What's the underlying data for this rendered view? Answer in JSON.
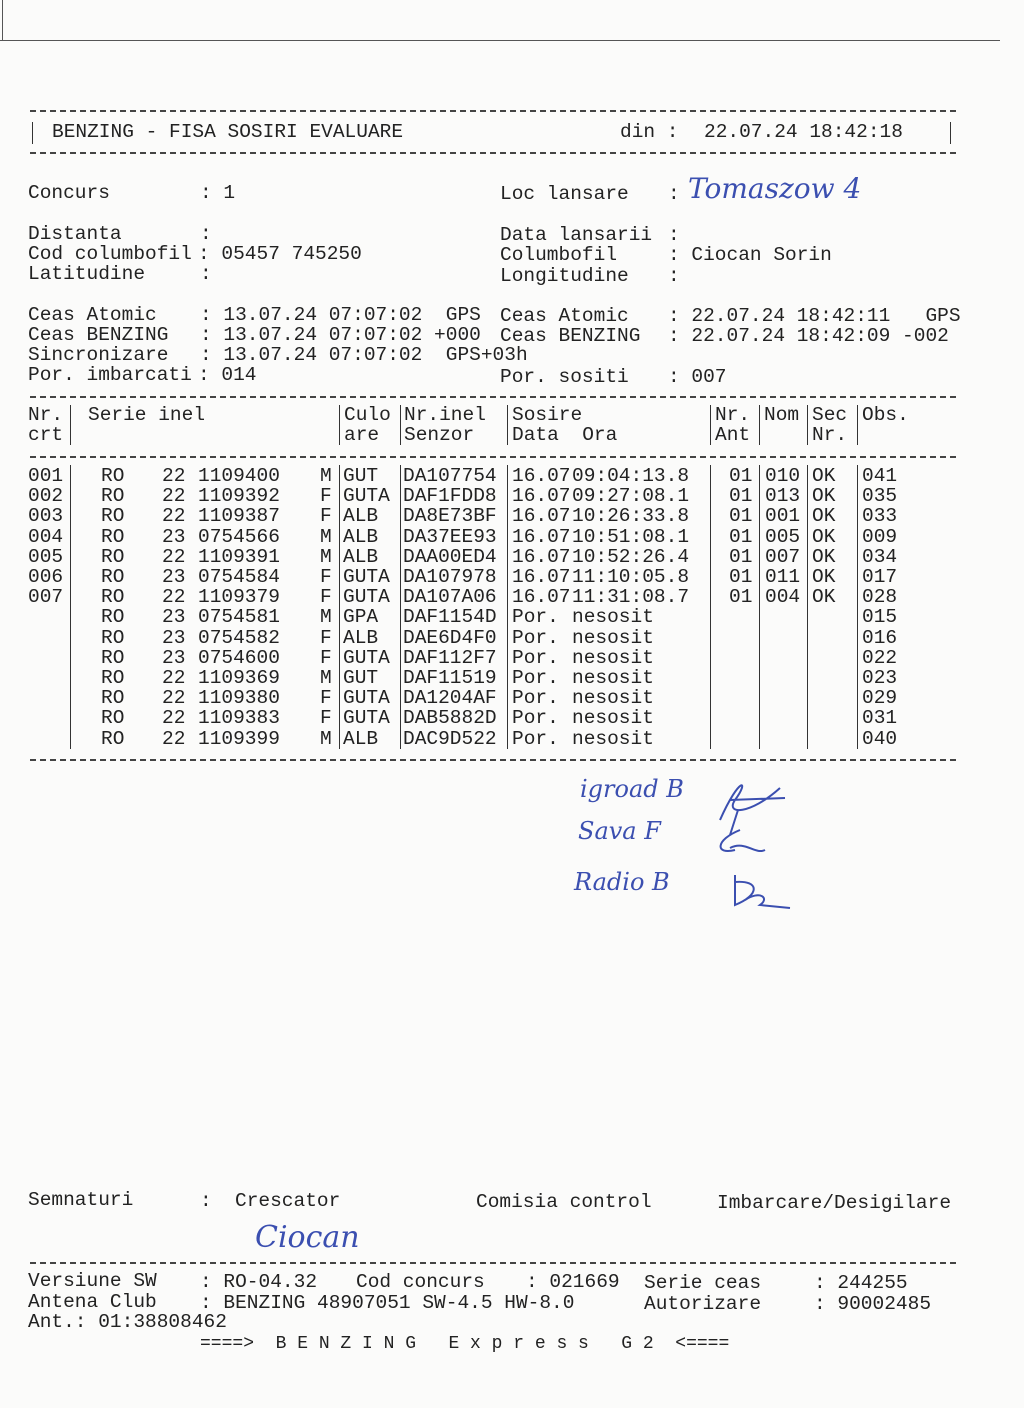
{
  "header": {
    "title": "BENZING - FISA SOSIRI EVALUARE",
    "din_label": "din :",
    "din_value": "22.07.24 18:42:18"
  },
  "info": {
    "concurs_label": "Concurs",
    "concurs_value": "1",
    "loc_lansare_label": "Loc lansare",
    "loc_lansare_value": "Tomaszow 4",
    "distanta_label": "Distanta",
    "distanta_value": "",
    "data_lansarii_label": "Data lansarii",
    "data_lansarii_value": "",
    "cod_columbofil_label": "Cod columbofil",
    "cod_columbofil_value": "05457 745250",
    "columbofil_label": "Columbofil",
    "columbofil_value": "Ciocan Sorin",
    "latitudine_label": "Latitudine",
    "latitudine_value": "",
    "longitudine_label": "Longitudine",
    "longitudine_value": ""
  },
  "clocks": {
    "ceas_atomic_label": "Ceas Atomic",
    "ceas_atomic_start": "13.07.24 07:07:02",
    "ceas_atomic_start_suffix": "GPS",
    "ceas_atomic_end": "22.07.24 18:42:11",
    "ceas_atomic_end_suffix": "GPS",
    "ceas_benzing_label": "Ceas BENZING",
    "ceas_benzing_start": "13.07.24 07:07:02",
    "ceas_benzing_start_suffix": "+000",
    "ceas_benzing_end": "22.07.24 18:42:09",
    "ceas_benzing_end_suffix": "-002",
    "sincronizare_label": "Sincronizare",
    "sincronizare_value": "13.07.24 07:07:02",
    "sincronizare_suffix": "GPS+03h",
    "imbarcati_label": "Por. imbarcati",
    "imbarcati_value": "014",
    "sositi_label": "Por. sositi",
    "sositi_value": "007"
  },
  "table": {
    "headers": {
      "nr": [
        "Nr.",
        "crt"
      ],
      "serie": [
        "Serie inel",
        ""
      ],
      "culoare": [
        "Culo",
        "are"
      ],
      "senzor": [
        "Nr.inel",
        "Senzor"
      ],
      "sosire": [
        "Sosire",
        "Data  Ora"
      ],
      "ant": [
        "Nr.",
        "Ant"
      ],
      "nom": [
        "Nom",
        ""
      ],
      "sec": [
        "Sec",
        "Nr."
      ],
      "obs": [
        "Obs.",
        ""
      ]
    },
    "rows": [
      {
        "nr": "001",
        "tara": "RO",
        "an": "22",
        "inel": "1109400",
        "sex": "M",
        "culoare": "GUT",
        "senzor": "DA107754",
        "data": "16.07",
        "ora": "09:04:13.8",
        "ant": "01",
        "nom": "010",
        "sec": "OK",
        "obs": "041"
      },
      {
        "nr": "002",
        "tara": "RO",
        "an": "22",
        "inel": "1109392",
        "sex": "F",
        "culoare": "GUTA",
        "senzor": "DAF1FDD8",
        "data": "16.07",
        "ora": "09:27:08.1",
        "ant": "01",
        "nom": "013",
        "sec": "OK",
        "obs": "035"
      },
      {
        "nr": "003",
        "tara": "RO",
        "an": "22",
        "inel": "1109387",
        "sex": "F",
        "culoare": "ALB",
        "senzor": "DA8E73BF",
        "data": "16.07",
        "ora": "10:26:33.8",
        "ant": "01",
        "nom": "001",
        "sec": "OK",
        "obs": "033"
      },
      {
        "nr": "004",
        "tara": "RO",
        "an": "23",
        "inel": "0754566",
        "sex": "M",
        "culoare": "ALB",
        "senzor": "DA37EE93",
        "data": "16.07",
        "ora": "10:51:08.1",
        "ant": "01",
        "nom": "005",
        "sec": "OK",
        "obs": "009"
      },
      {
        "nr": "005",
        "tara": "RO",
        "an": "22",
        "inel": "1109391",
        "sex": "M",
        "culoare": "ALB",
        "senzor": "DAA00ED4",
        "data": "16.07",
        "ora": "10:52:26.4",
        "ant": "01",
        "nom": "007",
        "sec": "OK",
        "obs": "034"
      },
      {
        "nr": "006",
        "tara": "RO",
        "an": "23",
        "inel": "0754584",
        "sex": "F",
        "culoare": "GUTA",
        "senzor": "DA107978",
        "data": "16.07",
        "ora": "11:10:05.8",
        "ant": "01",
        "nom": "011",
        "sec": "OK",
        "obs": "017"
      },
      {
        "nr": "007",
        "tara": "RO",
        "an": "22",
        "inel": "1109379",
        "sex": "F",
        "culoare": "GUTA",
        "senzor": "DA107A06",
        "data": "16.07",
        "ora": "11:31:08.7",
        "ant": "01",
        "nom": "004",
        "sec": "OK",
        "obs": "028"
      },
      {
        "nr": "",
        "tara": "RO",
        "an": "23",
        "inel": "0754581",
        "sex": "M",
        "culoare": "GPA",
        "senzor": "DAF1154D",
        "data": "Por.",
        "ora": "nesosit",
        "ant": "",
        "nom": "",
        "sec": "",
        "obs": "015"
      },
      {
        "nr": "",
        "tara": "RO",
        "an": "23",
        "inel": "0754582",
        "sex": "F",
        "culoare": "ALB",
        "senzor": "DAE6D4F0",
        "data": "Por.",
        "ora": "nesosit",
        "ant": "",
        "nom": "",
        "sec": "",
        "obs": "016"
      },
      {
        "nr": "",
        "tara": "RO",
        "an": "23",
        "inel": "0754600",
        "sex": "F",
        "culoare": "GUTA",
        "senzor": "DAF112F7",
        "data": "Por.",
        "ora": "nesosit",
        "ant": "",
        "nom": "",
        "sec": "",
        "obs": "022"
      },
      {
        "nr": "",
        "tara": "RO",
        "an": "22",
        "inel": "1109369",
        "sex": "M",
        "culoare": "GUT",
        "senzor": "DAF11519",
        "data": "Por.",
        "ora": "nesosit",
        "ant": "",
        "nom": "",
        "sec": "",
        "obs": "023"
      },
      {
        "nr": "",
        "tara": "RO",
        "an": "22",
        "inel": "1109380",
        "sex": "F",
        "culoare": "GUTA",
        "senzor": "DA1204AF",
        "data": "Por.",
        "ora": "nesosit",
        "ant": "",
        "nom": "",
        "sec": "",
        "obs": "029"
      },
      {
        "nr": "",
        "tara": "RO",
        "an": "22",
        "inel": "1109383",
        "sex": "F",
        "culoare": "GUTA",
        "senzor": "DAB5882D",
        "data": "Por.",
        "ora": "nesosit",
        "ant": "",
        "nom": "",
        "sec": "",
        "obs": "031"
      },
      {
        "nr": "",
        "tara": "RO",
        "an": "22",
        "inel": "1109399",
        "sex": "M",
        "culoare": "ALB",
        "senzor": "DAC9D522",
        "data": "Por.",
        "ora": "nesosit",
        "ant": "",
        "nom": "",
        "sec": "",
        "obs": "040"
      }
    ]
  },
  "handwritten_notes": [
    "igroad B",
    "Sava F",
    "Radio B"
  ],
  "signatures": {
    "label": "Semnaturi",
    "crescator": "Crescator",
    "comisia": "Comisia control",
    "imbarcare": "Imbarcare/Desigilare",
    "crescator_signature": "Ciocan"
  },
  "footer": {
    "versiune_label": "Versiune SW",
    "versiune_value": "RO-04.32",
    "cod_concurs_label": "Cod concurs",
    "cod_concurs_value": "021669",
    "serie_ceas_label": "Serie ceas",
    "serie_ceas_value": "244255",
    "antena_label": "Antena Club",
    "antena_value": "BENZING 48907051 SW-4.5 HW-8.0",
    "autorizare_label": "Autorizare",
    "autorizare_value": "90002485",
    "ant_line": "Ant.: 01:38808462",
    "brand_line": "====>  B E N Z I N G   E x p r e s s   G 2  <===="
  },
  "colors": {
    "ink": "#222222",
    "pen": "#3b4fb0",
    "paper": "#fbfbfa"
  }
}
